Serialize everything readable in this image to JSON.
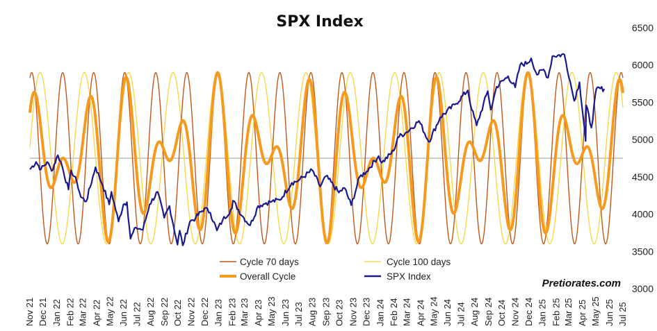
{
  "chart_data": {
    "type": "line",
    "title": "SPX Index",
    "credit": "Pretiorates.com",
    "yaxis": {
      "position": "right",
      "ticks": [
        3000,
        3500,
        4000,
        4500,
        5000,
        5500,
        6000,
        6500
      ],
      "tick_labels": [
        "3000",
        "3500",
        "4000",
        "4500",
        "5000",
        "5500",
        "6000",
        "6500"
      ],
      "range": [
        3000,
        6500
      ]
    },
    "xaxis": {
      "tick_labels": [
        "Nov 21",
        "Dec 21",
        "Jan 22",
        "Feb 22",
        "Mar 22",
        "Apr 22",
        "May 22",
        "Jun 22",
        "Jul 22",
        "Aug 22",
        "Sep 22",
        "Oct 22",
        "Nov 22",
        "Dec 22",
        "Jan 23",
        "Feb 23",
        "Mar 23",
        "Apr 23",
        "May 23",
        "Jun 23",
        "Jul 23",
        "Aug 23",
        "Sep 23",
        "Oct 23",
        "Nov 23",
        "Dec 23",
        "Jan 24",
        "Feb 24",
        "Mar 24",
        "Apr 24",
        "May 24",
        "Jun 24",
        "Jul 24",
        "Aug 24",
        "Sep 24",
        "Oct 24",
        "Nov 24",
        "Dec 24",
        "Jan 25",
        "Feb 25",
        "Mar 25",
        "Apr 25",
        "May 25",
        "Jun 25",
        "Jul 25"
      ],
      "label_rotation": -90
    },
    "baseline": 4750,
    "legend": {
      "placement": "bottom-center",
      "entries": [
        {
          "label": "Cycle 70 days",
          "color": "#c0581a"
        },
        {
          "label": "Cycle 100 days",
          "color": "#f5d84a"
        },
        {
          "label": "Overall Cycle",
          "color": "#f59a1e"
        },
        {
          "label": "SPX Index",
          "color": "#1a1a8c"
        }
      ]
    },
    "cycles": {
      "cycle_70_days": {
        "period_days": 70,
        "min": 3600,
        "max": 5900,
        "first_peak": "2021-11-05"
      },
      "cycle_100_days": {
        "period_days": 100,
        "min": 3600,
        "max": 5900,
        "first_peak": "2021-11-24"
      },
      "overall_cycle": {
        "min": 3600,
        "max": 5900
      }
    },
    "series": [
      {
        "name": "SPX Index",
        "end": "2025-05-20",
        "points": [
          [
            "2021-11-01",
            4600
          ],
          [
            "2021-11-15",
            4700
          ],
          [
            "2021-11-26",
            4600
          ],
          [
            "2021-12-10",
            4700
          ],
          [
            "2021-12-20",
            4580
          ],
          [
            "2022-01-03",
            4790
          ],
          [
            "2022-01-10",
            4700
          ],
          [
            "2022-01-27",
            4330
          ],
          [
            "2022-02-02",
            4590
          ],
          [
            "2022-02-15",
            4430
          ],
          [
            "2022-02-24",
            4230
          ],
          [
            "2022-03-08",
            4170
          ],
          [
            "2022-03-29",
            4630
          ],
          [
            "2022-04-14",
            4390
          ],
          [
            "2022-04-29",
            4130
          ],
          [
            "2022-05-04",
            4300
          ],
          [
            "2022-05-20",
            3900
          ],
          [
            "2022-05-31",
            4130
          ],
          [
            "2022-06-08",
            4160
          ],
          [
            "2022-06-16",
            3670
          ],
          [
            "2022-06-28",
            3820
          ],
          [
            "2022-07-14",
            3790
          ],
          [
            "2022-07-29",
            4130
          ],
          [
            "2022-08-16",
            4300
          ],
          [
            "2022-08-31",
            3950
          ],
          [
            "2022-09-12",
            4110
          ],
          [
            "2022-09-30",
            3590
          ],
          [
            "2022-10-05",
            3780
          ],
          [
            "2022-10-12",
            3580
          ],
          [
            "2022-10-28",
            3900
          ],
          [
            "2022-11-10",
            3950
          ],
          [
            "2022-11-30",
            4080
          ],
          [
            "2022-12-13",
            4020
          ],
          [
            "2022-12-28",
            3780
          ],
          [
            "2023-01-10",
            3920
          ],
          [
            "2023-01-31",
            4080
          ],
          [
            "2023-02-02",
            4180
          ],
          [
            "2023-02-24",
            3970
          ],
          [
            "2023-03-13",
            3850
          ],
          [
            "2023-03-31",
            4110
          ],
          [
            "2023-04-18",
            4150
          ],
          [
            "2023-05-01",
            4170
          ],
          [
            "2023-05-19",
            4190
          ],
          [
            "2023-06-15",
            4420
          ],
          [
            "2023-06-30",
            4450
          ],
          [
            "2023-07-31",
            4590
          ],
          [
            "2023-08-18",
            4370
          ],
          [
            "2023-08-31",
            4510
          ],
          [
            "2023-09-29",
            4290
          ],
          [
            "2023-10-12",
            4350
          ],
          [
            "2023-10-27",
            4120
          ],
          [
            "2023-11-15",
            4500
          ],
          [
            "2023-11-30",
            4570
          ],
          [
            "2023-12-28",
            4780
          ],
          [
            "2024-01-04",
            4690
          ],
          [
            "2024-01-31",
            4850
          ],
          [
            "2024-02-09",
            5030
          ],
          [
            "2024-02-29",
            5100
          ],
          [
            "2024-03-28",
            5250
          ],
          [
            "2024-04-19",
            4970
          ],
          [
            "2024-05-15",
            5300
          ],
          [
            "2024-06-17",
            5470
          ],
          [
            "2024-07-16",
            5660
          ],
          [
            "2024-07-25",
            5400
          ],
          [
            "2024-08-05",
            5190
          ],
          [
            "2024-08-30",
            5650
          ],
          [
            "2024-09-06",
            5400
          ],
          [
            "2024-09-19",
            5710
          ],
          [
            "2024-10-15",
            5850
          ],
          [
            "2024-10-31",
            5700
          ],
          [
            "2024-11-11",
            6000
          ],
          [
            "2024-11-29",
            6030
          ],
          [
            "2024-12-06",
            6090
          ],
          [
            "2024-12-19",
            5870
          ],
          [
            "2025-01-03",
            5940
          ],
          [
            "2025-01-13",
            5830
          ],
          [
            "2025-01-23",
            6120
          ],
          [
            "2025-02-19",
            6140
          ],
          [
            "2025-03-04",
            5780
          ],
          [
            "2025-03-13",
            5520
          ],
          [
            "2025-03-25",
            5770
          ],
          [
            "2025-04-08",
            4980
          ],
          [
            "2025-04-09",
            5460
          ],
          [
            "2025-04-21",
            5160
          ],
          [
            "2025-05-02",
            5680
          ],
          [
            "2025-05-20",
            5680
          ]
        ]
      }
    ]
  }
}
